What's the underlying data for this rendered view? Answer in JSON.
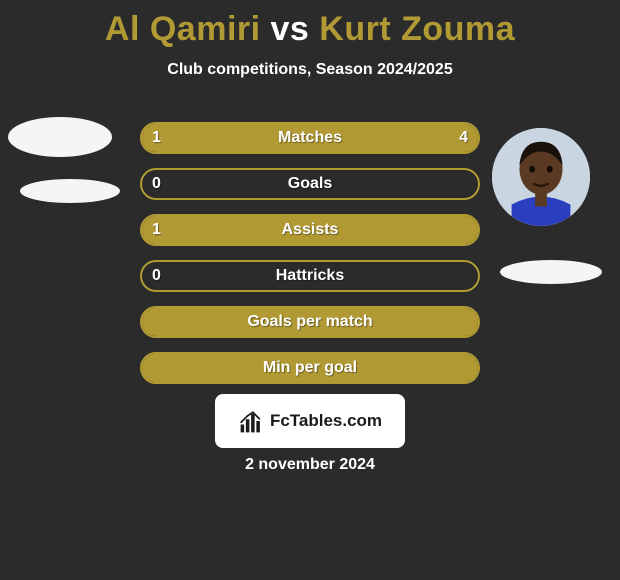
{
  "title": {
    "player1": "Al Qamiri",
    "vs": " vs ",
    "player2": "Kurt Zouma",
    "color_player": "#b19a34",
    "color_vs": "#ffffff"
  },
  "subtitle": "Club competitions, Season 2024/2025",
  "bars": {
    "border_color": "#b19a34",
    "fill_color": "#b19a34",
    "empty_color": "transparent",
    "text_color": "#ffffff",
    "height": 32,
    "radius": 16,
    "items": [
      {
        "label": "Matches",
        "left_val": "1",
        "right_val": "4",
        "left_pct": 20,
        "right_pct": 80
      },
      {
        "label": "Goals",
        "left_val": "0",
        "right_val": "",
        "left_pct": 0,
        "right_pct": 0
      },
      {
        "label": "Assists",
        "left_val": "1",
        "right_val": "",
        "left_pct": 100,
        "right_pct": 0
      },
      {
        "label": "Hattricks",
        "left_val": "0",
        "right_val": "",
        "left_pct": 0,
        "right_pct": 0
      },
      {
        "label": "Goals per match",
        "left_val": "",
        "right_val": "",
        "left_pct": 100,
        "right_pct": 0
      },
      {
        "label": "Min per goal",
        "left_val": "",
        "right_val": "",
        "left_pct": 100,
        "right_pct": 0
      }
    ]
  },
  "avatars": {
    "left_bg": "#f5f5f5",
    "right_bg": "#d9d9d9",
    "right_face_color": "#5a3a22",
    "right_jersey_color": "#2a3fbf"
  },
  "brand": {
    "text": "FcTables.com",
    "bg": "#ffffff",
    "text_color": "#1a1a1a",
    "icon_color": "#1a1a1a"
  },
  "footer_date": "2 november 2024",
  "background_color": "#2b2b2b"
}
